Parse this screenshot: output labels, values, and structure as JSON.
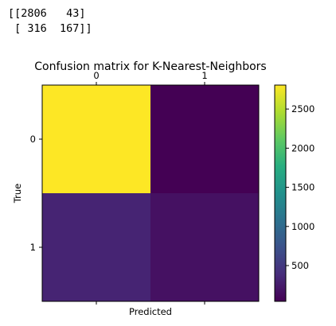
{
  "printout": {
    "line1": "[[2806   43]",
    "line2": " [ 316  167]]"
  },
  "chart_data": {
    "type": "heatmap",
    "title": "Confusion matrix for K-Nearest-Neighbors",
    "xlabel": "Predicted",
    "ylabel": "True",
    "x_categories": [
      "0",
      "1"
    ],
    "y_categories": [
      "0",
      "1"
    ],
    "values": [
      [
        2806,
        43
      ],
      [
        316,
        167
      ]
    ],
    "x_tick_position": "top",
    "grid": false,
    "colormap": "viridis",
    "colorbar": {
      "min": 43,
      "max": 2806,
      "ticks": [
        500,
        1000,
        1500,
        2000,
        2500
      ],
      "tick_labels": [
        "500",
        "1000",
        "1500",
        "2000",
        "2500"
      ]
    }
  }
}
